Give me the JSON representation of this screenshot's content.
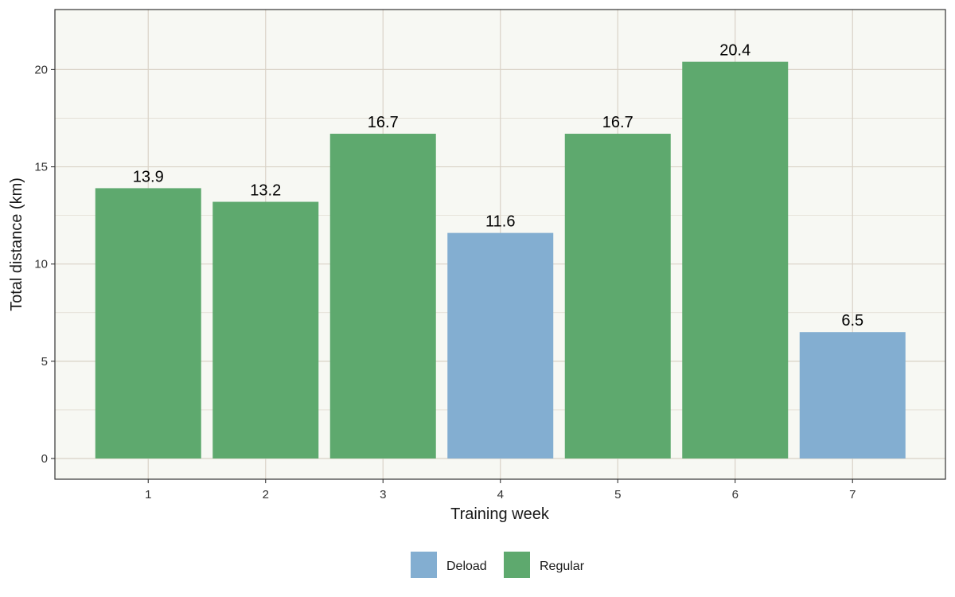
{
  "chart_data": {
    "type": "bar",
    "title": "",
    "xlabel": "Training week",
    "ylabel": "Total distance (km)",
    "categories": [
      "1",
      "2",
      "3",
      "4",
      "5",
      "6",
      "7"
    ],
    "values": [
      13.9,
      13.2,
      16.7,
      11.6,
      16.7,
      20.4,
      6.5
    ],
    "value_labels": [
      "13.9",
      "13.2",
      "16.7",
      "11.6",
      "16.7",
      "20.4",
      "6.5"
    ],
    "groups": [
      "Regular",
      "Regular",
      "Regular",
      "Deload",
      "Regular",
      "Regular",
      "Deload"
    ],
    "ylim": [
      0,
      22
    ],
    "yticks": [
      0,
      5,
      10,
      15,
      20
    ],
    "ytick_labels": [
      "0",
      "5",
      "10",
      "15",
      "20"
    ],
    "grid": true,
    "legend_position": "bottom",
    "legend": [
      {
        "name": "Deload",
        "color": "#83aed1"
      },
      {
        "name": "Regular",
        "color": "#5ea96e"
      }
    ],
    "colors": {
      "Deload": "#83aed1",
      "Regular": "#5ea96e",
      "panel_background": "#f7f8f3",
      "grid": "#d9d2c6",
      "border": "#333333"
    }
  }
}
